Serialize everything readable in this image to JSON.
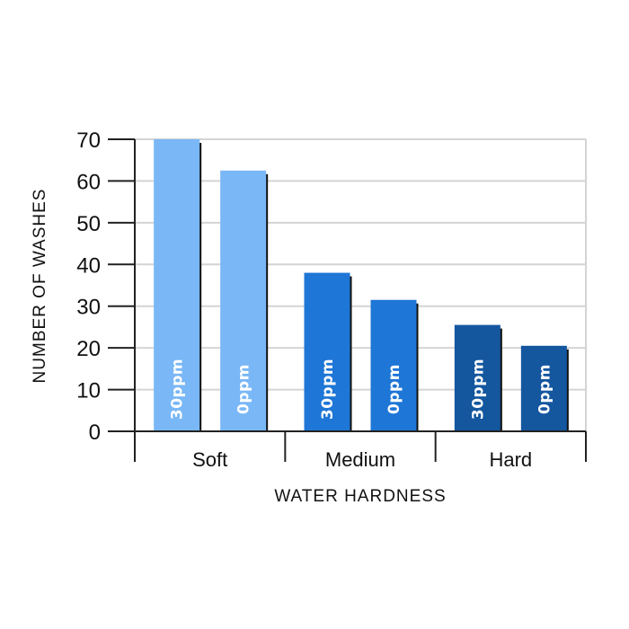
{
  "chart_data": {
    "type": "bar",
    "categories": [
      "Soft",
      "Medium",
      "Hard"
    ],
    "series": [
      {
        "values": [
          70,
          38,
          25.5
        ]
      },
      {
        "values": [
          62.5,
          31.5,
          20.5
        ]
      }
    ],
    "bar_labels": [
      "30ppm",
      "0ppm"
    ],
    "title": "",
    "xlabel": "WATER HARDNESS",
    "ylabel": "NUMBER OF WASHES",
    "ylim": [
      0,
      70
    ],
    "yticks": [
      0,
      10,
      20,
      30,
      40,
      50,
      60,
      70
    ],
    "grid": true,
    "legend": "none",
    "colors": {
      "Soft": "#79b7f6",
      "Medium": "#1e76d6",
      "Hard": "#14579f",
      "shadow": "#111111",
      "grid": "#d4d4d4",
      "axis": "#222222"
    }
  }
}
